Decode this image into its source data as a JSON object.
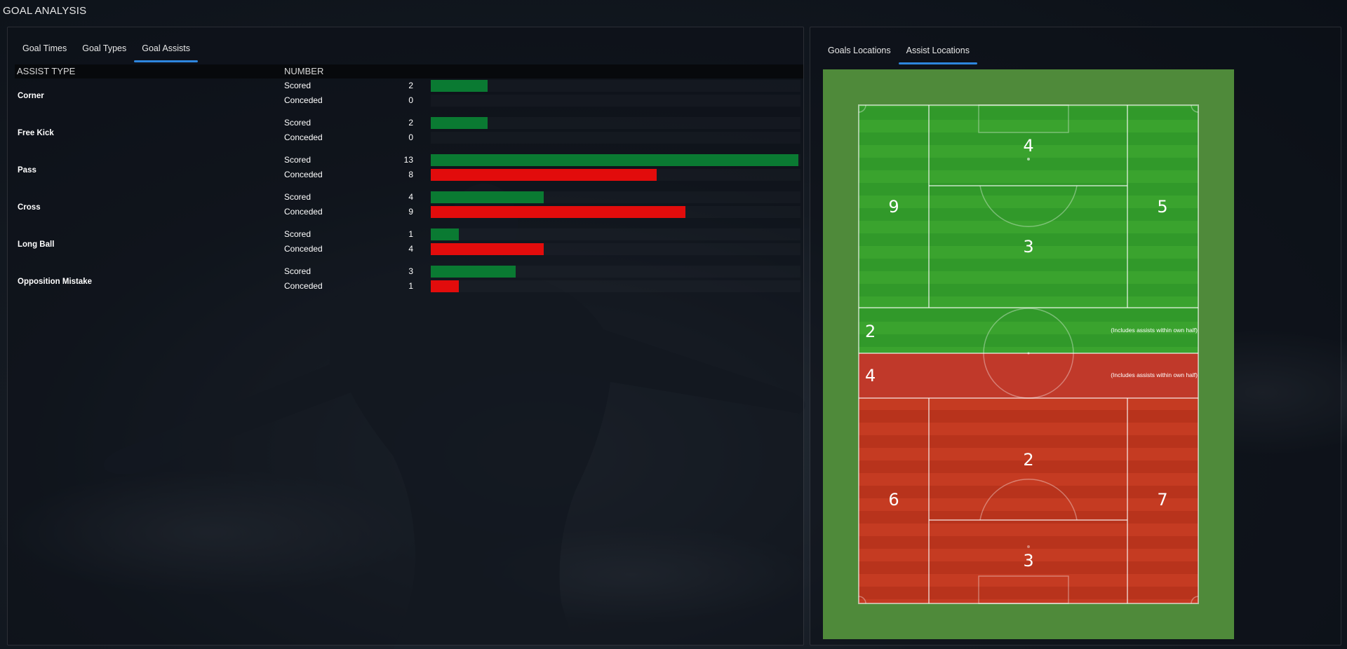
{
  "page_title": "GOAL ANALYSIS",
  "left_tabs": [
    {
      "label": "Goal Times",
      "active": false
    },
    {
      "label": "Goal Types",
      "active": false
    },
    {
      "label": "Goal Assists",
      "active": true
    }
  ],
  "right_tabs": [
    {
      "label": "Goals Locations",
      "active": false
    },
    {
      "label": "Assist Locations",
      "active": true
    }
  ],
  "table": {
    "col_type": "ASSIST TYPE",
    "col_number": "NUMBER",
    "max_value": 13,
    "groups": [
      {
        "type": "Corner",
        "rows": [
          {
            "label": "Scored",
            "value": 2
          },
          {
            "label": "Conceded",
            "value": 0
          }
        ]
      },
      {
        "type": "Free Kick",
        "rows": [
          {
            "label": "Scored",
            "value": 2
          },
          {
            "label": "Conceded",
            "value": 0
          }
        ]
      },
      {
        "type": "Pass",
        "rows": [
          {
            "label": "Scored",
            "value": 13
          },
          {
            "label": "Conceded",
            "value": 8
          }
        ]
      },
      {
        "type": "Cross",
        "rows": [
          {
            "label": "Scored",
            "value": 4
          },
          {
            "label": "Conceded",
            "value": 9
          }
        ]
      },
      {
        "type": "Long Ball",
        "rows": [
          {
            "label": "Scored",
            "value": 1
          },
          {
            "label": "Conceded",
            "value": 4
          }
        ]
      },
      {
        "type": "Opposition Mistake",
        "rows": [
          {
            "label": "Scored",
            "value": 3
          },
          {
            "label": "Conceded",
            "value": 1
          }
        ]
      }
    ]
  },
  "pitch": {
    "colors": {
      "scored_zone": "#3aa32e",
      "conceded_zone": "#c53b22",
      "surround": "#4f8a3a",
      "scored_bar": "#0a7a32",
      "conceded_bar": "#e20c0c"
    },
    "zones": {
      "top_box": "4",
      "top_left_wing": "9",
      "top_right_wing": "5",
      "top_center": "3",
      "scored_own_half": "2",
      "conceded_own_half": "4",
      "bottom_center": "2",
      "bottom_left_wing": "6",
      "bottom_right_wing": "7",
      "bottom_box": "3"
    },
    "own_half_note": "(Includes assists within own half)"
  }
}
